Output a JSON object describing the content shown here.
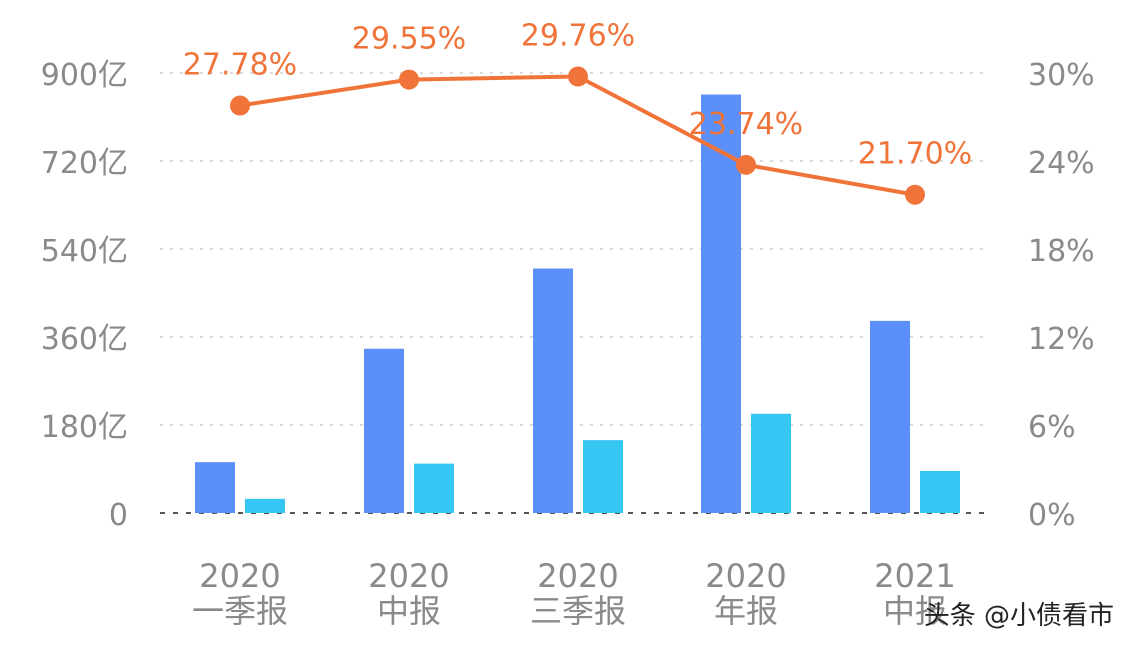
{
  "chart_data": {
    "type": "bar",
    "categories": [
      {
        "year": "2020",
        "period": "一季报"
      },
      {
        "year": "2020",
        "period": "中报"
      },
      {
        "year": "2020",
        "period": "三季报"
      },
      {
        "year": "2020",
        "period": "年报"
      },
      {
        "year": "2021",
        "period": "中报"
      }
    ],
    "series": [
      {
        "type": "bar",
        "axis": "left",
        "color": "#5b8ff9",
        "values": [
          104,
          336,
          500,
          856,
          393
        ]
      },
      {
        "type": "bar",
        "axis": "left",
        "color": "#36c6f4",
        "values": [
          29,
          101,
          149,
          203,
          86
        ]
      },
      {
        "type": "line",
        "axis": "right",
        "color": "#f0743a",
        "values": [
          27.78,
          29.55,
          29.76,
          23.74,
          21.7
        ],
        "labels": [
          "27.78%",
          "29.55%",
          "29.76%",
          "23.74%",
          "21.70%"
        ]
      }
    ],
    "y_left": {
      "min": 0,
      "max": 900,
      "ticks": [
        0,
        180,
        360,
        540,
        720,
        900
      ],
      "tick_labels": [
        "0",
        "180亿",
        "360亿",
        "540亿",
        "720亿",
        "900亿"
      ]
    },
    "y_right": {
      "min": 0,
      "max": 30,
      "ticks": [
        0,
        6,
        12,
        18,
        24,
        30
      ],
      "tick_labels": [
        "0%",
        "6%",
        "12%",
        "18%",
        "24%",
        "30%"
      ]
    },
    "grid": true,
    "legend": "none"
  },
  "watermark": "头条 @小债看市"
}
